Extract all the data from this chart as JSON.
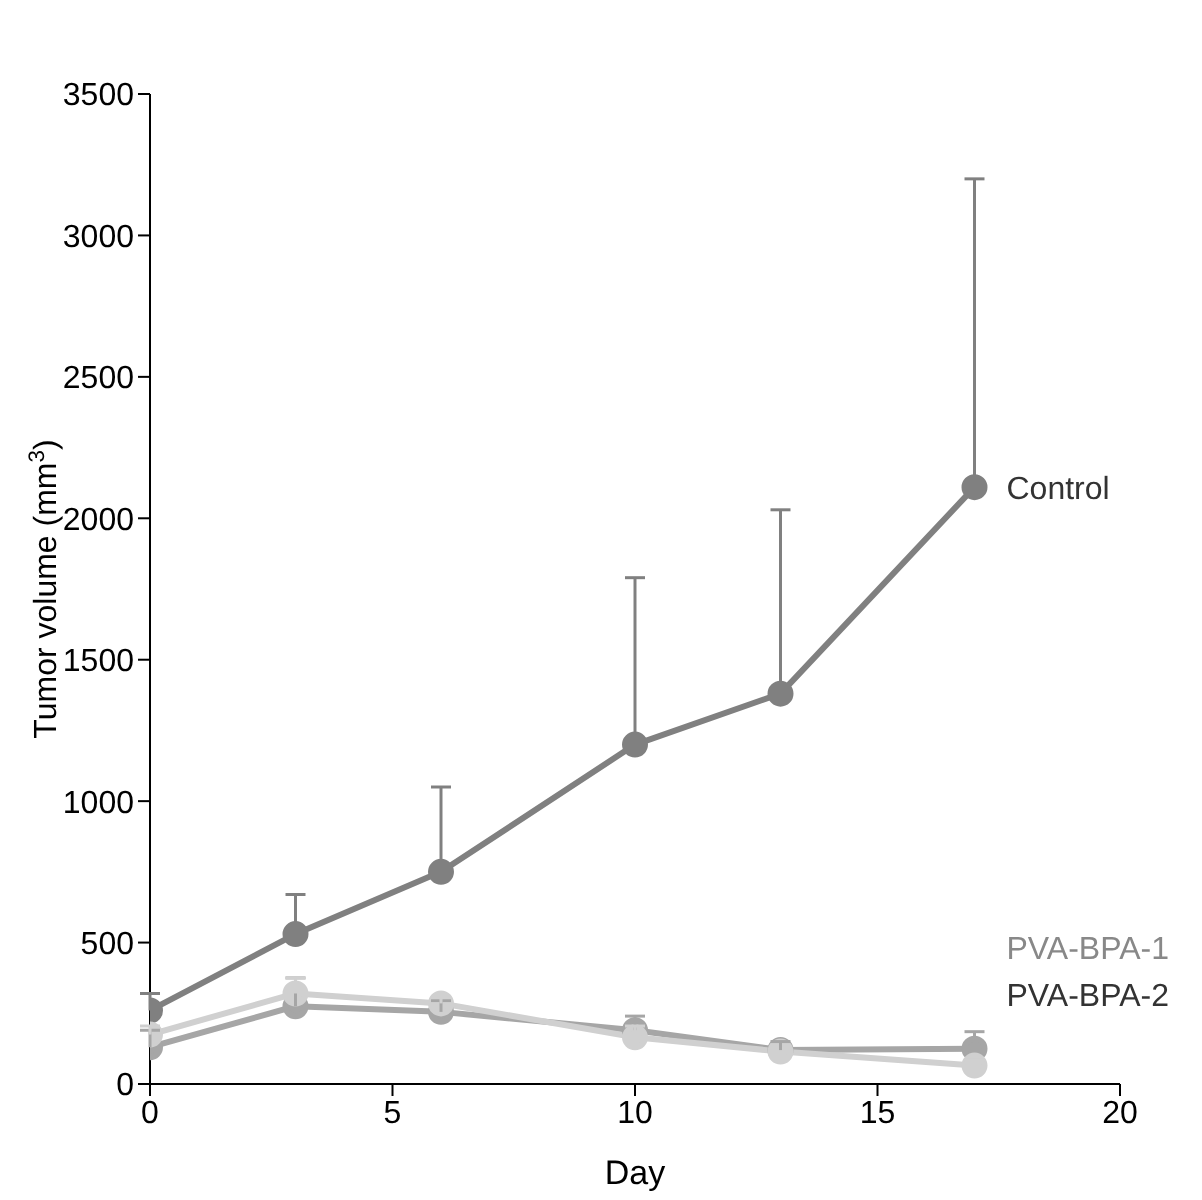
{
  "chart_data": {
    "type": "line",
    "xlabel": "Day",
    "ylabel": "Tumor volume (mm$^{3}$)",
    "x": [
      0,
      3,
      6,
      10,
      13,
      17
    ],
    "xlim": [
      0,
      20
    ],
    "xticks": [
      0,
      5,
      10,
      15,
      20
    ],
    "ylim": [
      0,
      3500
    ],
    "yticks": [
      0,
      500,
      1000,
      1500,
      2000,
      2500,
      3000,
      3500
    ],
    "grid": false,
    "legend": "right",
    "marker": "circle",
    "line_style": "solid",
    "series": [
      {
        "name": "Control",
        "color": "#808080",
        "values": [
          260,
          530,
          750,
          1200,
          1380,
          2110
        ],
        "errors": [
          [
            260,
            320
          ],
          [
            530,
            670
          ],
          [
            750,
            1050
          ],
          [
            1200,
            1790
          ],
          [
            1380,
            2030
          ],
          [
            2110,
            3200
          ]
        ]
      },
      {
        "name": "PVA-BPA-1",
        "color": "#a6a6a6",
        "values": [
          130,
          275,
          255,
          190,
          120,
          125
        ],
        "errors": [
          [
            130,
            190
          ],
          [
            275,
            375
          ],
          [
            255,
            295
          ],
          [
            190,
            240
          ],
          [
            120,
            150
          ],
          [
            125,
            185
          ]
        ]
      },
      {
        "name": "PVA-BPA-2",
        "color": "#d0d0d0",
        "values": [
          175,
          320,
          285,
          165,
          115,
          65
        ],
        "errors": [
          [
            175,
            205
          ],
          [
            320,
            375
          ],
          [
            285,
            305
          ],
          [
            165,
            205
          ],
          null,
          [
            65,
            85
          ]
        ]
      }
    ]
  }
}
